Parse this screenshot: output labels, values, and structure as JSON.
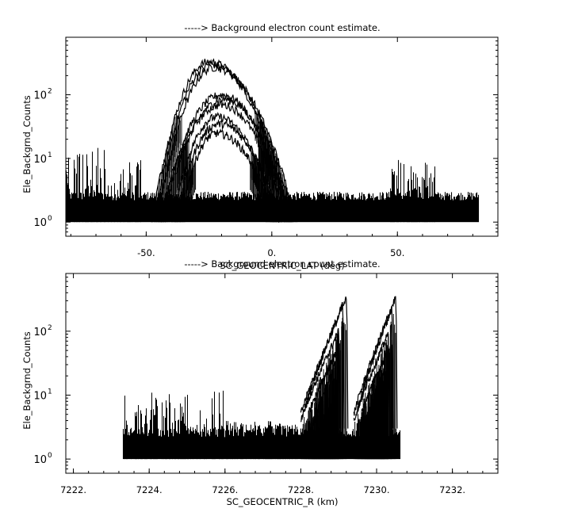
{
  "chart_data": [
    {
      "type": "line",
      "title": "-----> Background electron count estimate.",
      "xlabel": "SC_GEOCENTRIC_LAT (deg)",
      "ylabel": "Ele_Backgrnd_Counts",
      "xlim": [
        -82,
        90
      ],
      "ylim": [
        0.6,
        800
      ],
      "yscale": "log",
      "x_ticks": [
        -50,
        0,
        50
      ],
      "x_tick_labels": [
        "-50.",
        "0.",
        "50."
      ],
      "y_ticks": [
        1,
        10,
        100
      ],
      "grid": false,
      "legend": "none",
      "color": "#000000",
      "noise_floor": {
        "x_range": [
          -82,
          82
        ],
        "y_range": [
          1,
          3
        ]
      },
      "noisy_clusters": [
        {
          "x_range": [
            -82,
            -65
          ],
          "y_max": 15
        },
        {
          "x_range": [
            -65,
            -52
          ],
          "y_max": 10
        },
        {
          "x_range": [
            47,
            65
          ],
          "y_max": 10
        }
      ],
      "series": [
        {
          "peak_x": -25,
          "peak_y": 330,
          "x_range": [
            -48,
            8
          ]
        },
        {
          "peak_x": -24,
          "peak_y": 300,
          "x_range": [
            -47,
            9
          ]
        },
        {
          "peak_x": -23,
          "peak_y": 270,
          "x_range": [
            -46,
            10
          ]
        },
        {
          "peak_x": -20,
          "peak_y": 100,
          "x_range": [
            -45,
            7
          ]
        },
        {
          "peak_x": -19,
          "peak_y": 85,
          "x_range": [
            -44,
            8
          ]
        },
        {
          "peak_x": -20,
          "peak_y": 70,
          "x_range": [
            -45,
            6
          ]
        },
        {
          "peak_x": -22,
          "peak_y": 45,
          "x_range": [
            -40,
            3
          ]
        },
        {
          "peak_x": -21,
          "peak_y": 35,
          "x_range": [
            -39,
            4
          ]
        },
        {
          "peak_x": -22,
          "peak_y": 25,
          "x_range": [
            -37,
            2
          ]
        }
      ]
    },
    {
      "type": "line",
      "title": "-----> Background electron count estimate.",
      "xlabel": "SC_GEOCENTRIC_R (km)",
      "ylabel": "Ele_Backgrnd_Counts",
      "xlim": [
        7221.8,
        7233.2
      ],
      "ylim": [
        0.6,
        800
      ],
      "yscale": "log",
      "x_ticks": [
        7222,
        7224,
        7226,
        7228,
        7230,
        7232
      ],
      "x_tick_labels": [
        "7222.",
        "7224.",
        "7226.",
        "7228.",
        "7230.",
        "7232."
      ],
      "y_ticks": [
        1,
        10,
        100
      ],
      "grid": false,
      "legend": "none",
      "color": "#000000",
      "noise_floor": {
        "x_range": [
          7223.3,
          7230.6
        ],
        "y_range": [
          1,
          3
        ]
      },
      "noisy_clusters": [
        {
          "x_range": [
            7223.3,
            7226.0
          ],
          "y_max": 12
        },
        {
          "x_range": [
            7226.0,
            7227.9
          ],
          "y_max": 4
        }
      ],
      "series": [
        {
          "x_start": 7228.0,
          "x_end": 7229.2,
          "y_start": 5,
          "y_end": 320
        },
        {
          "x_start": 7228.1,
          "x_end": 7229.1,
          "y_start": 6,
          "y_end": 260
        },
        {
          "x_start": 7228.0,
          "x_end": 7229.0,
          "y_start": 4,
          "y_end": 100
        },
        {
          "x_start": 7228.2,
          "x_end": 7229.0,
          "y_start": 5,
          "y_end": 55
        },
        {
          "x_start": 7228.3,
          "x_end": 7228.9,
          "y_start": 3,
          "y_end": 30
        },
        {
          "x_start": 7229.4,
          "x_end": 7230.5,
          "y_start": 5,
          "y_end": 340
        },
        {
          "x_start": 7229.5,
          "x_end": 7230.4,
          "y_start": 6,
          "y_end": 230
        },
        {
          "x_start": 7229.4,
          "x_end": 7230.3,
          "y_start": 4,
          "y_end": 90
        },
        {
          "x_start": 7229.6,
          "x_end": 7230.3,
          "y_start": 5,
          "y_end": 50
        },
        {
          "x_start": 7229.7,
          "x_end": 7230.2,
          "y_start": 3,
          "y_end": 25
        }
      ]
    }
  ]
}
